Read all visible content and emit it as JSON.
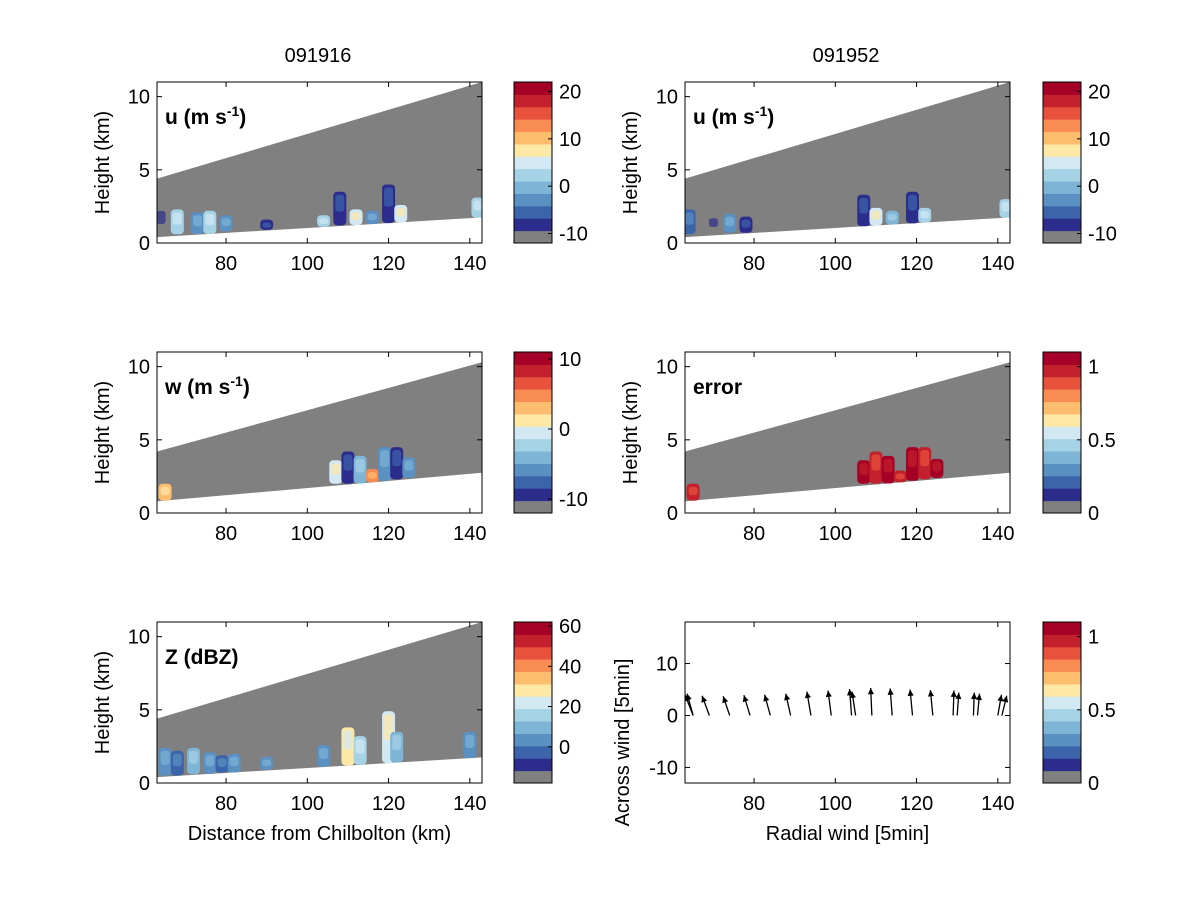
{
  "figure": {
    "column_titles": [
      "091916",
      "091952"
    ],
    "xlabel_bottom_left": "Distance from Chilbolton (km)",
    "xlabel_bottom_right": "Radial wind [5min]"
  },
  "colors": {
    "colormap": [
      "#808080",
      "#2c2c8c",
      "#3c64aa",
      "#5a90c2",
      "#7eb4d6",
      "#a6d2e6",
      "#d2e8f2",
      "#fde8a6",
      "#fdbd6e",
      "#f98c52",
      "#e8523c",
      "#c2202c",
      "#a50026"
    ],
    "radar_mask": "#808080",
    "arrows": "#000000"
  },
  "chart_data": [
    {
      "type": "heatmap",
      "panel": "u-left",
      "annotation": "u (m s",
      "annotation_sup": "-1",
      "annotation_tail": ")",
      "ylabel": "Height (km)",
      "xticks": [
        "80",
        "100",
        "120",
        "140"
      ],
      "yticks": [
        "0",
        "5",
        "10"
      ],
      "xlim": [
        63,
        143
      ],
      "ylim": [
        0,
        11
      ],
      "beam": {
        "bottom": [
          0.4,
          1.75
        ],
        "top": [
          4.4,
          11.0
        ]
      },
      "colorbar": {
        "ticks": [
          "20",
          "10",
          "0",
          "-10"
        ],
        "range": [
          -12,
          22
        ]
      },
      "echoes": [
        {
          "x": 64,
          "y0": 0.6,
          "y1": 2.4,
          "v": 0
        },
        {
          "x": 68,
          "y0": 0.6,
          "y1": 2.3,
          "v": 5
        },
        {
          "x": 73,
          "y0": 0.6,
          "y1": 2.1,
          "v": 3
        },
        {
          "x": 76,
          "y0": 0.6,
          "y1": 2.2,
          "v": 5
        },
        {
          "x": 80,
          "y0": 0.8,
          "y1": 1.9,
          "v": 3
        },
        {
          "x": 90,
          "y0": 0.9,
          "y1": 1.6,
          "v": 1
        },
        {
          "x": 104,
          "y0": 1.1,
          "y1": 1.9,
          "v": 5
        },
        {
          "x": 108,
          "y0": 1.2,
          "y1": 3.5,
          "v": 1
        },
        {
          "x": 112,
          "y0": 1.2,
          "y1": 2.3,
          "v": 6
        },
        {
          "x": 116,
          "y0": 1.2,
          "y1": 2.2,
          "v": 3
        },
        {
          "x": 120,
          "y0": 1.3,
          "y1": 4.0,
          "v": 1
        },
        {
          "x": 123,
          "y0": 1.4,
          "y1": 2.6,
          "v": 6
        },
        {
          "x": 142,
          "y0": 1.7,
          "y1": 3.1,
          "v": 5
        }
      ]
    },
    {
      "type": "heatmap",
      "panel": "u-right",
      "annotation": "u (m s",
      "annotation_sup": "-1",
      "annotation_tail": ")",
      "ylabel": "Height (km)",
      "xticks": [
        "80",
        "100",
        "120",
        "140"
      ],
      "yticks": [
        "0",
        "5",
        "10"
      ],
      "xlim": [
        63,
        143
      ],
      "ylim": [
        0,
        11
      ],
      "beam": {
        "bottom": [
          0.4,
          1.75
        ],
        "top": [
          4.4,
          11.0
        ]
      },
      "colorbar": {
        "ticks": [
          "20",
          "10",
          "0",
          "-10"
        ],
        "range": [
          -12,
          22
        ]
      },
      "echoes": [
        {
          "x": 64,
          "y0": 0.6,
          "y1": 2.3,
          "v": 2
        },
        {
          "x": 70,
          "y0": 0.7,
          "y1": 1.9,
          "v": 0
        },
        {
          "x": 74,
          "y0": 0.7,
          "y1": 2.0,
          "v": 3
        },
        {
          "x": 78,
          "y0": 0.7,
          "y1": 1.8,
          "v": 1
        },
        {
          "x": 107,
          "y0": 1.1,
          "y1": 3.3,
          "v": 1
        },
        {
          "x": 110,
          "y0": 1.1,
          "y1": 2.4,
          "v": 6
        },
        {
          "x": 114,
          "y0": 1.1,
          "y1": 2.2,
          "v": 4
        },
        {
          "x": 119,
          "y0": 1.2,
          "y1": 3.5,
          "v": 1
        },
        {
          "x": 122,
          "y0": 1.3,
          "y1": 2.4,
          "v": 5
        },
        {
          "x": 142,
          "y0": 1.7,
          "y1": 3.0,
          "v": 5
        }
      ]
    },
    {
      "type": "heatmap",
      "panel": "w",
      "annotation": "w (m s",
      "annotation_sup": "-1",
      "annotation_tail": ")",
      "ylabel": "Height (km)",
      "xticks": [
        "80",
        "100",
        "120",
        "140"
      ],
      "yticks": [
        "0",
        "5",
        "10"
      ],
      "xlim": [
        63,
        143
      ],
      "ylim": [
        0,
        11
      ],
      "beam": {
        "bottom": [
          0.8,
          2.75
        ],
        "top": [
          4.2,
          10.3
        ]
      },
      "colorbar": {
        "ticks": [
          "10",
          "0",
          "-10"
        ],
        "range": [
          -12,
          11
        ]
      },
      "echoes": [
        {
          "x": 65,
          "y0": 0.8,
          "y1": 2.0,
          "v": 8
        },
        {
          "x": 107,
          "y0": 2.0,
          "y1": 3.6,
          "v": 6
        },
        {
          "x": 110,
          "y0": 2.0,
          "y1": 4.2,
          "v": 1
        },
        {
          "x": 113,
          "y0": 2.0,
          "y1": 3.9,
          "v": 4
        },
        {
          "x": 116,
          "y0": 2.1,
          "y1": 3.0,
          "v": 9
        },
        {
          "x": 119,
          "y0": 2.2,
          "y1": 4.5,
          "v": 3
        },
        {
          "x": 122,
          "y0": 2.3,
          "y1": 4.5,
          "v": 1
        },
        {
          "x": 125,
          "y0": 2.4,
          "y1": 3.8,
          "v": 3
        }
      ]
    },
    {
      "type": "heatmap",
      "panel": "error",
      "annotation": "error",
      "ylabel": "Height (km)",
      "xticks": [
        "80",
        "100",
        "120",
        "140"
      ],
      "yticks": [
        "0",
        "5",
        "10"
      ],
      "xlim": [
        63,
        143
      ],
      "ylim": [
        0,
        11
      ],
      "beam": {
        "bottom": [
          0.8,
          2.75
        ],
        "top": [
          4.2,
          10.3
        ]
      },
      "colorbar": {
        "ticks": [
          "1",
          "0.5",
          "0"
        ],
        "range": [
          0,
          1.1
        ]
      },
      "echoes": [
        {
          "x": 65,
          "y0": 0.8,
          "y1": 2.0,
          "v": 11
        },
        {
          "x": 107,
          "y0": 2.0,
          "y1": 3.6,
          "v": 12
        },
        {
          "x": 110,
          "y0": 2.0,
          "y1": 4.2,
          "v": 11
        },
        {
          "x": 113,
          "y0": 2.0,
          "y1": 3.9,
          "v": 12
        },
        {
          "x": 116,
          "y0": 2.1,
          "y1": 2.9,
          "v": 11
        },
        {
          "x": 119,
          "y0": 2.2,
          "y1": 4.5,
          "v": 12
        },
        {
          "x": 122,
          "y0": 2.3,
          "y1": 4.5,
          "v": 11
        },
        {
          "x": 125,
          "y0": 2.4,
          "y1": 3.7,
          "v": 12
        }
      ]
    },
    {
      "type": "heatmap",
      "panel": "Z",
      "annotation": "Z (dBZ)",
      "ylabel": "Height (km)",
      "xlabel": "Distance from Chilbolton (km)",
      "xticks": [
        "80",
        "100",
        "120",
        "140"
      ],
      "yticks": [
        "0",
        "5",
        "10"
      ],
      "xlim": [
        63,
        143
      ],
      "ylim": [
        0,
        11
      ],
      "beam": {
        "bottom": [
          0.4,
          1.75
        ],
        "top": [
          4.4,
          11.0
        ]
      },
      "colorbar": {
        "ticks": [
          "60",
          "40",
          "20",
          "0"
        ],
        "range": [
          -18,
          62
        ]
      },
      "echoes": [
        {
          "x": 65,
          "y0": 0.5,
          "y1": 2.4,
          "v": 3
        },
        {
          "x": 68,
          "y0": 0.5,
          "y1": 2.2,
          "v": 2
        },
        {
          "x": 72,
          "y0": 0.6,
          "y1": 2.4,
          "v": 4
        },
        {
          "x": 76,
          "y0": 0.6,
          "y1": 2.1,
          "v": 3
        },
        {
          "x": 79,
          "y0": 0.7,
          "y1": 1.9,
          "v": 2
        },
        {
          "x": 82,
          "y0": 0.7,
          "y1": 2.0,
          "v": 3
        },
        {
          "x": 90,
          "y0": 0.9,
          "y1": 1.8,
          "v": 3
        },
        {
          "x": 104,
          "y0": 1.1,
          "y1": 2.6,
          "v": 3
        },
        {
          "x": 110,
          "y0": 1.2,
          "y1": 3.8,
          "v": 7
        },
        {
          "x": 113,
          "y0": 1.2,
          "y1": 3.2,
          "v": 5
        },
        {
          "x": 120,
          "y0": 1.3,
          "y1": 4.9,
          "v": 6
        },
        {
          "x": 122,
          "y0": 1.4,
          "y1": 3.5,
          "v": 4
        },
        {
          "x": 140,
          "y0": 1.7,
          "y1": 3.5,
          "v": 3
        }
      ]
    },
    {
      "type": "scatter",
      "panel": "wind-arrows",
      "ylabel": "Across wind [5min]",
      "xlabel": "Radial wind [5min]",
      "xticks": [
        "80",
        "100",
        "120",
        "140"
      ],
      "yticks": [
        "-10",
        "0",
        "10"
      ],
      "xlim": [
        63,
        143
      ],
      "ylim": [
        -13,
        18
      ],
      "colorbar": {
        "ticks": [
          "1",
          "0.5",
          "0"
        ],
        "range": [
          0,
          1.1
        ]
      },
      "arrows": [
        {
          "x": 65,
          "dx": -2.0,
          "dy": 4.0
        },
        {
          "x": 65,
          "dx": -1.5,
          "dy": 4.2
        },
        {
          "x": 69,
          "dx": -1.8,
          "dy": 3.8
        },
        {
          "x": 74,
          "dx": -1.6,
          "dy": 3.7
        },
        {
          "x": 79,
          "dx": -1.5,
          "dy": 3.9
        },
        {
          "x": 84,
          "dx": -1.4,
          "dy": 4.0
        },
        {
          "x": 89,
          "dx": -1.2,
          "dy": 4.2
        },
        {
          "x": 94,
          "dx": -1.0,
          "dy": 4.6
        },
        {
          "x": 99,
          "dx": -0.8,
          "dy": 4.8
        },
        {
          "x": 104,
          "dx": -0.5,
          "dy": 5.1
        },
        {
          "x": 105,
          "dx": -0.9,
          "dy": 4.6
        },
        {
          "x": 109,
          "dx": -0.3,
          "dy": 5.3
        },
        {
          "x": 114,
          "dx": -0.5,
          "dy": 5.2
        },
        {
          "x": 119,
          "dx": -0.6,
          "dy": 5.0
        },
        {
          "x": 124,
          "dx": -0.6,
          "dy": 4.9
        },
        {
          "x": 129,
          "dx": 0.2,
          "dy": 4.8
        },
        {
          "x": 130,
          "dx": 0.4,
          "dy": 4.4
        },
        {
          "x": 134,
          "dx": 0.2,
          "dy": 4.4
        },
        {
          "x": 135,
          "dx": 0.5,
          "dy": 4.2
        },
        {
          "x": 140,
          "dx": 0.9,
          "dy": 4.0
        },
        {
          "x": 141,
          "dx": 1.2,
          "dy": 3.8
        }
      ]
    }
  ]
}
